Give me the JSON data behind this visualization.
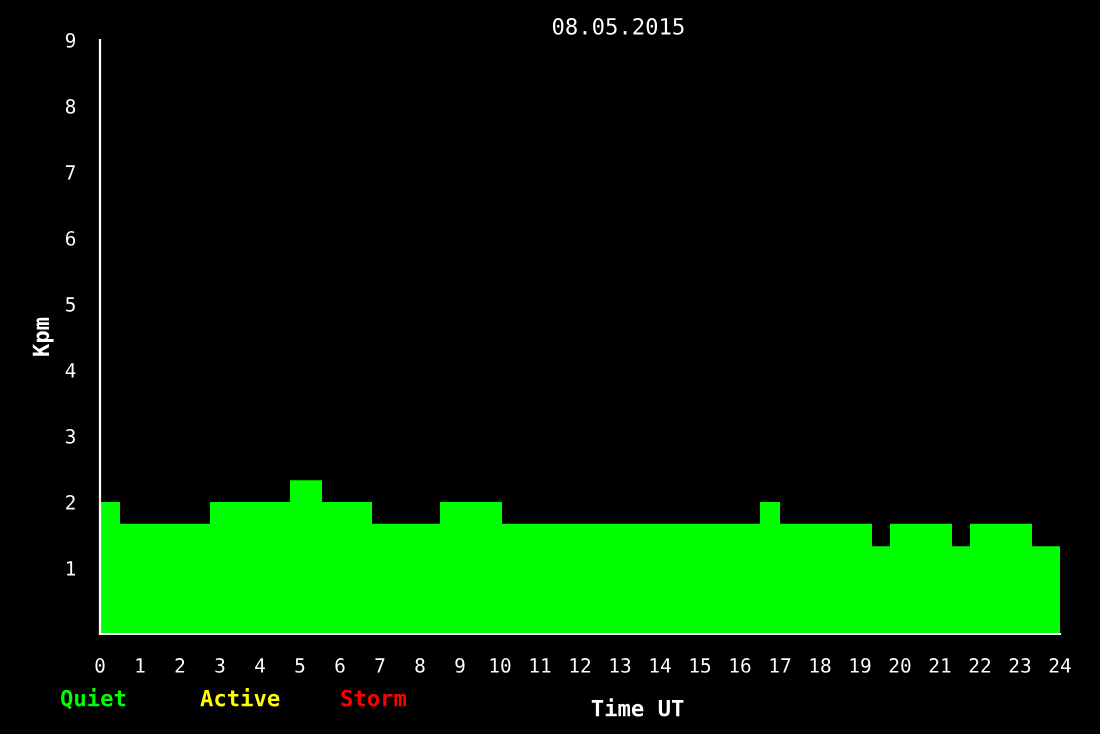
{
  "chart_data": {
    "type": "histogram",
    "title": "08.05.2015",
    "xlabel": "Time UT",
    "ylabel": "Kpm",
    "annotations": [
      "Quiet",
      "Active",
      "Storm"
    ],
    "bins": [
      0,
      0.5,
      2.75,
      4.75,
      5.55,
      6.8,
      8.5,
      10.05,
      16.5,
      17.0,
      19.3,
      19.75,
      21.3,
      21.75,
      23.3,
      24
    ],
    "values": [
      2,
      1.67,
      2,
      2.33,
      2,
      1.67,
      2,
      1.67,
      2,
      1.67,
      1.33,
      1.67,
      1.33,
      1.67,
      1.33
    ],
    "color": "#00ff00",
    "xlim": [
      0,
      24
    ],
    "ylim": [
      0,
      9
    ],
    "xticks": [
      0,
      1,
      2,
      3,
      4,
      5,
      6,
      7,
      8,
      9,
      10,
      11,
      12,
      13,
      14,
      15,
      16,
      17,
      18,
      19,
      20,
      21,
      22,
      23,
      24
    ],
    "yticks": [
      1,
      2,
      3,
      4,
      5,
      6,
      7,
      8,
      9
    ],
    "grid": false,
    "legend": false
  }
}
